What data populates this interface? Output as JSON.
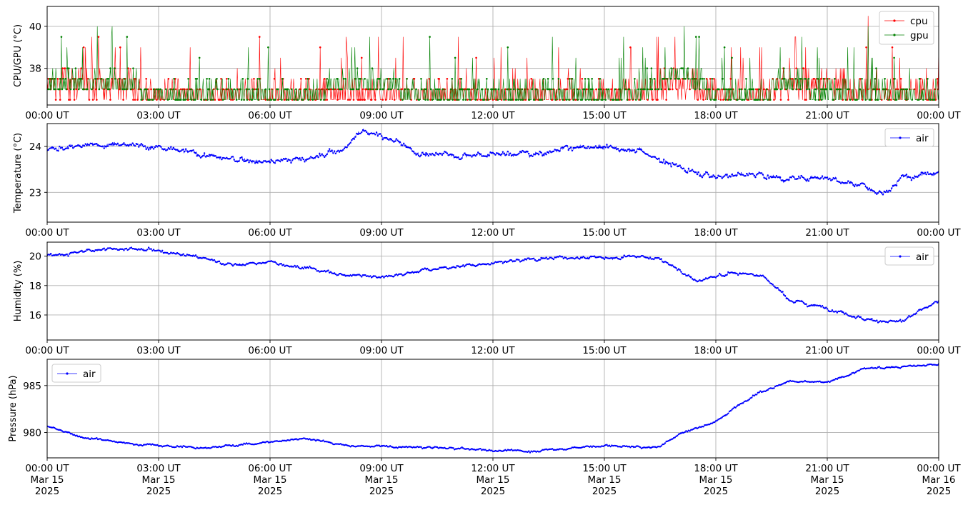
{
  "colors": {
    "cpu": "#ff0000",
    "gpu": "#008000",
    "air": "#0000ff",
    "grid": "#b0b0b0"
  },
  "chart_data": [
    {
      "type": "line",
      "ylabel": "CPU/GPU (°C)",
      "ylim": [
        36.25,
        40.95
      ],
      "yticks": [
        38,
        40
      ],
      "grid": true,
      "legend_position": "top-right",
      "x_tick_labels": [
        "00:00 UT",
        "03:00 UT",
        "06:00 UT",
        "09:00 UT",
        "12:00 UT",
        "15:00 UT",
        "18:00 UT",
        "21:00 UT",
        "00:00 UT"
      ],
      "series": [
        {
          "name": "cpu",
          "x": [
            "2025-03-15 00:00",
            "2025-03-15 01:00",
            "2025-03-15 02:00",
            "2025-03-15 03:00",
            "2025-03-15 04:00",
            "2025-03-15 05:00",
            "2025-03-15 06:00",
            "2025-03-15 07:00",
            "2025-03-15 08:00",
            "2025-03-15 09:00",
            "2025-03-15 10:00",
            "2025-03-15 11:00",
            "2025-03-15 12:00",
            "2025-03-15 13:00",
            "2025-03-15 14:00",
            "2025-03-15 15:00",
            "2025-03-15 16:00",
            "2025-03-15 17:00",
            "2025-03-15 18:00",
            "2025-03-15 19:00",
            "2025-03-15 20:00",
            "2025-03-15 21:00",
            "2025-03-15 22:00",
            "2025-03-15 23:00",
            "2025-03-16 00:00"
          ],
          "values": [
            37.5,
            37.5,
            37.5,
            37.0,
            37.0,
            37.0,
            37.0,
            37.0,
            37.0,
            37.0,
            37.0,
            37.0,
            37.0,
            37.0,
            37.0,
            37.0,
            37.0,
            37.5,
            37.0,
            37.0,
            37.5,
            37.5,
            37.0,
            37.0,
            37.0
          ],
          "peak": {
            "x": "2025-03-15 22:06",
            "value": 40.7
          }
        },
        {
          "name": "gpu",
          "x": [
            "2025-03-15 00:00",
            "2025-03-15 01:00",
            "2025-03-15 02:00",
            "2025-03-15 03:00",
            "2025-03-15 04:00",
            "2025-03-15 05:00",
            "2025-03-15 06:00",
            "2025-03-15 07:00",
            "2025-03-15 08:00",
            "2025-03-15 09:00",
            "2025-03-15 10:00",
            "2025-03-15 11:00",
            "2025-03-15 12:00",
            "2025-03-15 13:00",
            "2025-03-15 14:00",
            "2025-03-15 15:00",
            "2025-03-15 16:00",
            "2025-03-15 17:00",
            "2025-03-15 18:00",
            "2025-03-15 19:00",
            "2025-03-15 20:00",
            "2025-03-15 21:00",
            "2025-03-15 22:00",
            "2025-03-15 23:00",
            "2025-03-16 00:00"
          ],
          "values": [
            37.5,
            37.5,
            37.5,
            37.0,
            37.0,
            37.0,
            37.0,
            37.0,
            37.5,
            37.5,
            37.0,
            37.0,
            37.0,
            37.0,
            37.0,
            37.0,
            37.0,
            38.0,
            37.0,
            37.0,
            37.5,
            37.0,
            37.0,
            37.0,
            37.0
          ],
          "peak": {
            "x": "2025-03-15 22:06",
            "value": 40.2
          }
        }
      ]
    },
    {
      "type": "line",
      "ylabel": "Temperature (°C)",
      "ylim": [
        22.35,
        24.5
      ],
      "yticks": [
        23,
        24
      ],
      "grid": true,
      "legend_position": "top-right",
      "x_tick_labels": [
        "00:00 UT",
        "03:00 UT",
        "06:00 UT",
        "09:00 UT",
        "12:00 UT",
        "15:00 UT",
        "18:00 UT",
        "21:00 UT",
        "00:00 UT"
      ],
      "series": [
        {
          "name": "air",
          "x": [
            "2025-03-15 00:00",
            "2025-03-15 01:00",
            "2025-03-15 02:00",
            "2025-03-15 03:00",
            "2025-03-15 04:00",
            "2025-03-15 05:00",
            "2025-03-15 06:00",
            "2025-03-15 07:00",
            "2025-03-15 08:00",
            "2025-03-15 08:30",
            "2025-03-15 09:00",
            "2025-03-15 10:00",
            "2025-03-15 11:00",
            "2025-03-15 12:00",
            "2025-03-15 13:00",
            "2025-03-15 14:00",
            "2025-03-15 15:00",
            "2025-03-15 16:00",
            "2025-03-15 17:00",
            "2025-03-15 18:00",
            "2025-03-15 19:00",
            "2025-03-15 20:00",
            "2025-03-15 21:00",
            "2025-03-15 22:00",
            "2025-03-15 22:30",
            "2025-03-15 23:00",
            "2025-03-16 00:00"
          ],
          "values": [
            23.95,
            24.0,
            24.1,
            23.95,
            23.85,
            23.7,
            23.7,
            23.72,
            23.95,
            24.35,
            24.25,
            23.85,
            23.8,
            23.85,
            23.85,
            23.95,
            24.0,
            23.9,
            23.55,
            23.35,
            23.4,
            23.3,
            23.35,
            23.15,
            22.9,
            23.3,
            23.5
          ]
        }
      ]
    },
    {
      "type": "line",
      "ylabel": "Humidity (%)",
      "ylim": [
        14.3,
        20.95
      ],
      "yticks": [
        16,
        18,
        20
      ],
      "grid": true,
      "legend_position": "top-right",
      "x_tick_labels": [
        "00:00 UT",
        "03:00 UT",
        "06:00 UT",
        "09:00 UT",
        "12:00 UT",
        "15:00 UT",
        "18:00 UT",
        "21:00 UT",
        "00:00 UT"
      ],
      "series": [
        {
          "name": "air",
          "x": [
            "2025-03-15 00:00",
            "2025-03-15 01:00",
            "2025-03-15 02:00",
            "2025-03-15 03:00",
            "2025-03-15 04:00",
            "2025-03-15 05:00",
            "2025-03-15 06:00",
            "2025-03-15 07:00",
            "2025-03-15 08:00",
            "2025-03-15 09:00",
            "2025-03-15 10:00",
            "2025-03-15 11:00",
            "2025-03-15 12:00",
            "2025-03-15 13:00",
            "2025-03-15 14:00",
            "2025-03-15 15:00",
            "2025-03-15 16:00",
            "2025-03-15 16:30",
            "2025-03-15 17:30",
            "2025-03-15 18:30",
            "2025-03-15 19:15",
            "2025-03-15 20:00",
            "2025-03-15 21:00",
            "2025-03-15 22:00",
            "2025-03-15 23:00",
            "2025-03-16 00:00"
          ],
          "values": [
            20.0,
            20.3,
            20.5,
            20.4,
            20.0,
            19.4,
            19.6,
            19.2,
            18.7,
            18.6,
            19.0,
            19.3,
            19.5,
            19.8,
            19.9,
            19.9,
            20.0,
            19.8,
            18.3,
            18.9,
            18.7,
            17.0,
            16.5,
            15.7,
            15.5,
            17.0
          ]
        }
      ]
    },
    {
      "type": "line",
      "ylabel": "Pressure (hPa)",
      "ylim": [
        977.3,
        987.8
      ],
      "yticks": [
        980,
        985
      ],
      "grid": true,
      "legend_position": "top-left",
      "x_tick_labels": [
        "00:00 UT\nMar 15\n2025",
        "03:00 UT\nMar 15\n2025",
        "06:00 UT\nMar 15\n2025",
        "09:00 UT\nMar 15\n2025",
        "12:00 UT\nMar 15\n2025",
        "15:00 UT\nMar 15\n2025",
        "18:00 UT\nMar 15\n2025",
        "21:00 UT\nMar 15\n2025",
        "00:00 UT\nMar 16\n2025"
      ],
      "series": [
        {
          "name": "air",
          "x": [
            "2025-03-15 00:00",
            "2025-03-15 01:00",
            "2025-03-15 02:00",
            "2025-03-15 03:00",
            "2025-03-15 04:00",
            "2025-03-15 05:00",
            "2025-03-15 06:00",
            "2025-03-15 07:00",
            "2025-03-15 08:00",
            "2025-03-15 09:00",
            "2025-03-15 10:00",
            "2025-03-15 11:00",
            "2025-03-15 12:00",
            "2025-03-15 13:00",
            "2025-03-15 14:00",
            "2025-03-15 15:00",
            "2025-03-15 16:00",
            "2025-03-15 16:30",
            "2025-03-15 17:00",
            "2025-03-15 18:00",
            "2025-03-15 19:00",
            "2025-03-15 20:00",
            "2025-03-15 21:00",
            "2025-03-15 22:00",
            "2025-03-15 23:00",
            "2025-03-16 00:00"
          ],
          "values": [
            980.6,
            979.5,
            978.9,
            978.6,
            978.4,
            978.6,
            979.0,
            979.4,
            978.6,
            978.5,
            978.4,
            978.3,
            978.1,
            978.0,
            978.3,
            978.6,
            978.4,
            978.5,
            979.8,
            981.2,
            984.0,
            985.5,
            985.3,
            986.8,
            987.0,
            987.2
          ]
        }
      ]
    }
  ]
}
